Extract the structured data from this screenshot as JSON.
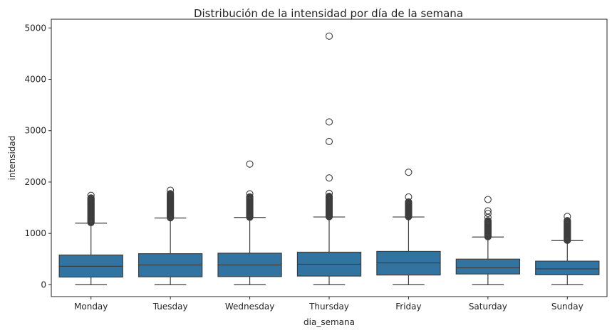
{
  "chart_data": {
    "type": "boxplot",
    "title": "Distribución de la intensidad por día de la semana",
    "xlabel": "dia_semana",
    "ylabel": "intensidad",
    "ylim": [
      -230,
      5170
    ],
    "yticks": [
      0,
      1000,
      2000,
      3000,
      4000,
      5000
    ],
    "grid": false,
    "legend": "none",
    "box_color": "#3274a1",
    "line_color": "#3d3d3d",
    "categories": [
      "Monday",
      "Tuesday",
      "Wednesday",
      "Thursday",
      "Friday",
      "Saturday",
      "Sunday"
    ],
    "boxes": [
      {
        "category": "Monday",
        "whisker_low": 0,
        "q1": 150,
        "median": 360,
        "q3": 580,
        "whisker_high": 1200,
        "dense_outliers": [
          1210,
          1700
        ],
        "outliers": [
          1740
        ]
      },
      {
        "category": "Tuesday",
        "whisker_low": 0,
        "q1": 155,
        "median": 385,
        "q3": 605,
        "whisker_high": 1300,
        "dense_outliers": [
          1305,
          1780
        ],
        "outliers": [
          1840
        ]
      },
      {
        "category": "Wednesday",
        "whisker_low": 0,
        "q1": 160,
        "median": 385,
        "q3": 615,
        "whisker_high": 1310,
        "dense_outliers": [
          1315,
          1720
        ],
        "outliers": [
          1770,
          2350
        ]
      },
      {
        "category": "Thursday",
        "whisker_low": 0,
        "q1": 170,
        "median": 400,
        "q3": 635,
        "whisker_high": 1320,
        "dense_outliers": [
          1325,
          1730
        ],
        "outliers": [
          1780,
          2080,
          2790,
          3170,
          4840
        ]
      },
      {
        "category": "Friday",
        "whisker_low": 0,
        "q1": 190,
        "median": 425,
        "q3": 650,
        "whisker_high": 1320,
        "dense_outliers": [
          1325,
          1620
        ],
        "outliers": [
          1710,
          2190
        ]
      },
      {
        "category": "Saturday",
        "whisker_low": 0,
        "q1": 210,
        "median": 330,
        "q3": 500,
        "whisker_high": 930,
        "dense_outliers": [
          935,
          1250
        ],
        "outliers": [
          1310,
          1390,
          1440,
          1660
        ]
      },
      {
        "category": "Sunday",
        "whisker_low": 0,
        "q1": 195,
        "median": 310,
        "q3": 460,
        "whisker_high": 860,
        "dense_outliers": [
          865,
          1250
        ],
        "outliers": [
          1330
        ]
      }
    ]
  }
}
